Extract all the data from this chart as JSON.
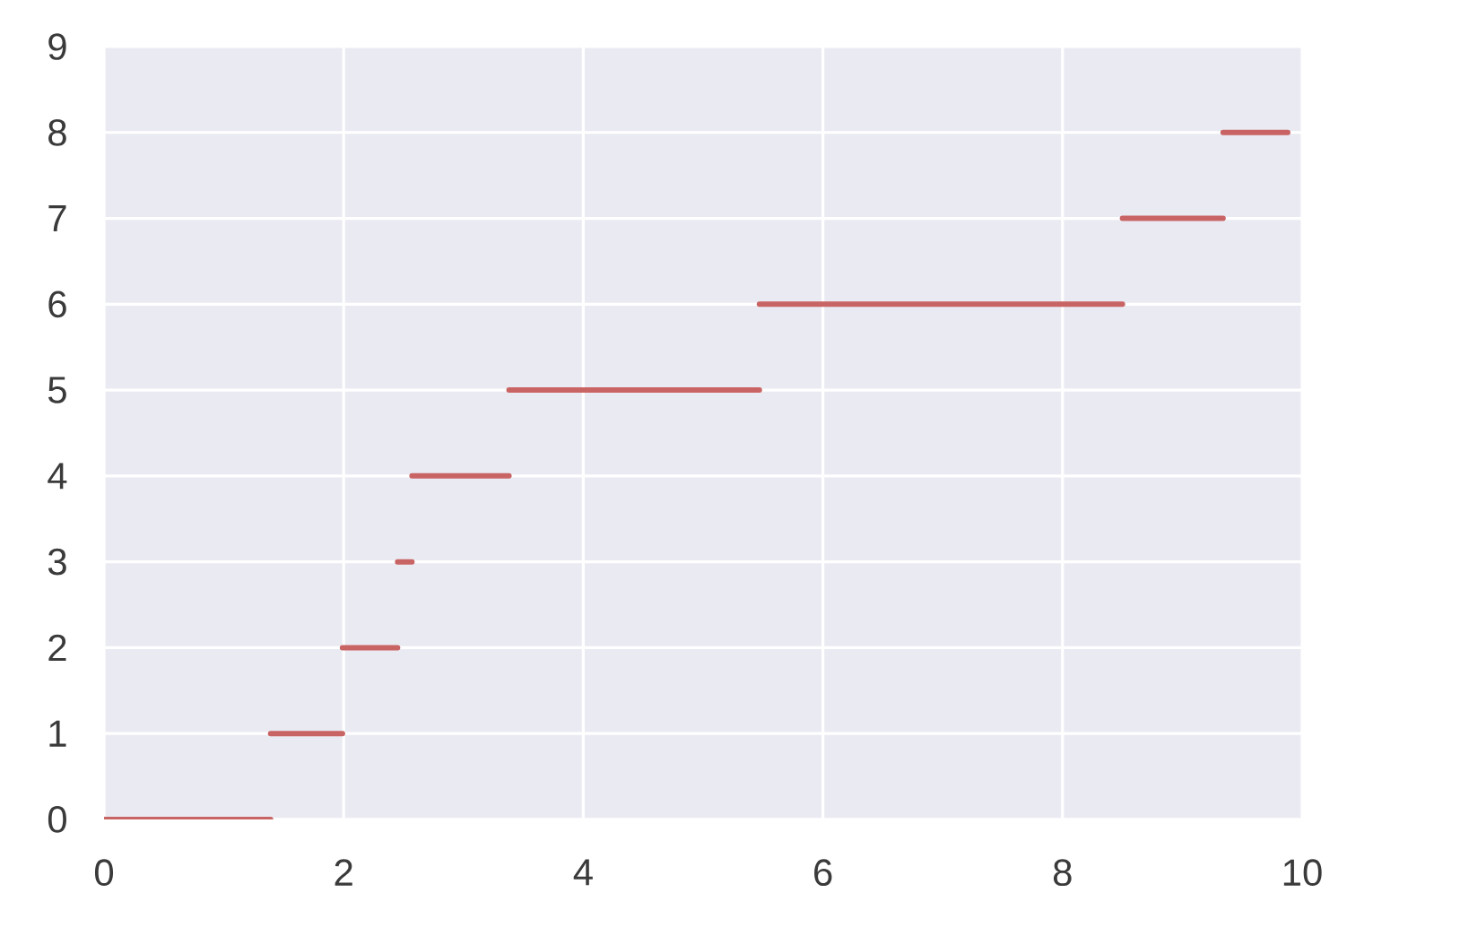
{
  "chart_data": {
    "type": "line",
    "series": [
      {
        "color": "#c96464",
        "x": [
          0,
          1.39
        ],
        "values": [
          0,
          0
        ]
      },
      {
        "color": "#c96464",
        "x": [
          1.39,
          1.99
        ],
        "values": [
          1,
          1
        ]
      },
      {
        "color": "#c96464",
        "x": [
          1.99,
          2.45
        ],
        "values": [
          2,
          2
        ]
      },
      {
        "color": "#c96464",
        "x": [
          2.45,
          2.57
        ],
        "values": [
          3,
          3
        ]
      },
      {
        "color": "#c96464",
        "x": [
          2.57,
          3.38
        ],
        "values": [
          4,
          4
        ]
      },
      {
        "color": "#c96464",
        "x": [
          3.38,
          5.47
        ],
        "values": [
          5,
          5
        ]
      },
      {
        "color": "#c96464",
        "x": [
          5.47,
          8.5
        ],
        "values": [
          6,
          6
        ]
      },
      {
        "color": "#c96464",
        "x": [
          8.5,
          9.34
        ],
        "values": [
          7,
          7
        ]
      },
      {
        "color": "#c96464",
        "x": [
          9.34,
          9.88
        ],
        "values": [
          8,
          8
        ]
      }
    ],
    "xlim": [
      0,
      10
    ],
    "ylim": [
      0,
      9
    ],
    "xticks": [
      0,
      2,
      4,
      6,
      8,
      10
    ],
    "yticks": [
      0,
      1,
      2,
      3,
      4,
      5,
      6,
      7,
      8,
      9
    ],
    "grid": true
  }
}
